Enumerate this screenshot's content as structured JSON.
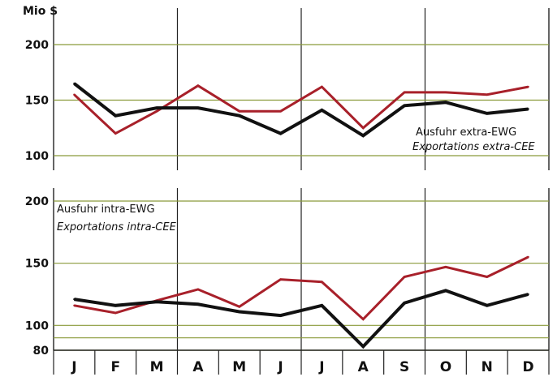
{
  "chart_data": {
    "type": "line",
    "unit_label": "Mio $",
    "months": [
      "J",
      "F",
      "M",
      "A",
      "M",
      "J",
      "J",
      "A",
      "S",
      "O",
      "N",
      "D"
    ],
    "colors": {
      "red": "#a8202a",
      "black": "#111111",
      "grid": "#8a9a3a"
    },
    "panels": [
      {
        "legend": [
          "Ausfuhr extra-EWG",
          "Exportations extra-CEE"
        ],
        "legend_placement": "right",
        "ylim": [
          100,
          215
        ],
        "yticks": [
          100,
          150,
          200
        ],
        "series": [
          {
            "color": "red",
            "values": [
              155,
              120,
              140,
              163,
              140,
              140,
              162,
              125,
              157,
              157,
              155,
              162
            ]
          },
          {
            "color": "black",
            "values": [
              165,
              136,
              143,
              143,
              136,
              120,
              141,
              118,
              145,
              148,
              138,
              142
            ]
          }
        ]
      },
      {
        "legend": [
          "Ausfuhr intra-EWG",
          "Exportations intra-CEE"
        ],
        "legend_placement": "top-left",
        "ylim": [
          80,
          210
        ],
        "yticks": [
          80,
          100,
          150,
          200
        ],
        "extra_gridlines": [
          90
        ],
        "series": [
          {
            "color": "red",
            "values": [
              116,
              110,
              120,
              129,
              115,
              137,
              135,
              105,
              139,
              147,
              139,
              155
            ]
          },
          {
            "color": "black",
            "values": [
              121,
              116,
              119,
              117,
              111,
              108,
              116,
              83,
              118,
              128,
              116,
              125
            ]
          }
        ]
      }
    ]
  }
}
